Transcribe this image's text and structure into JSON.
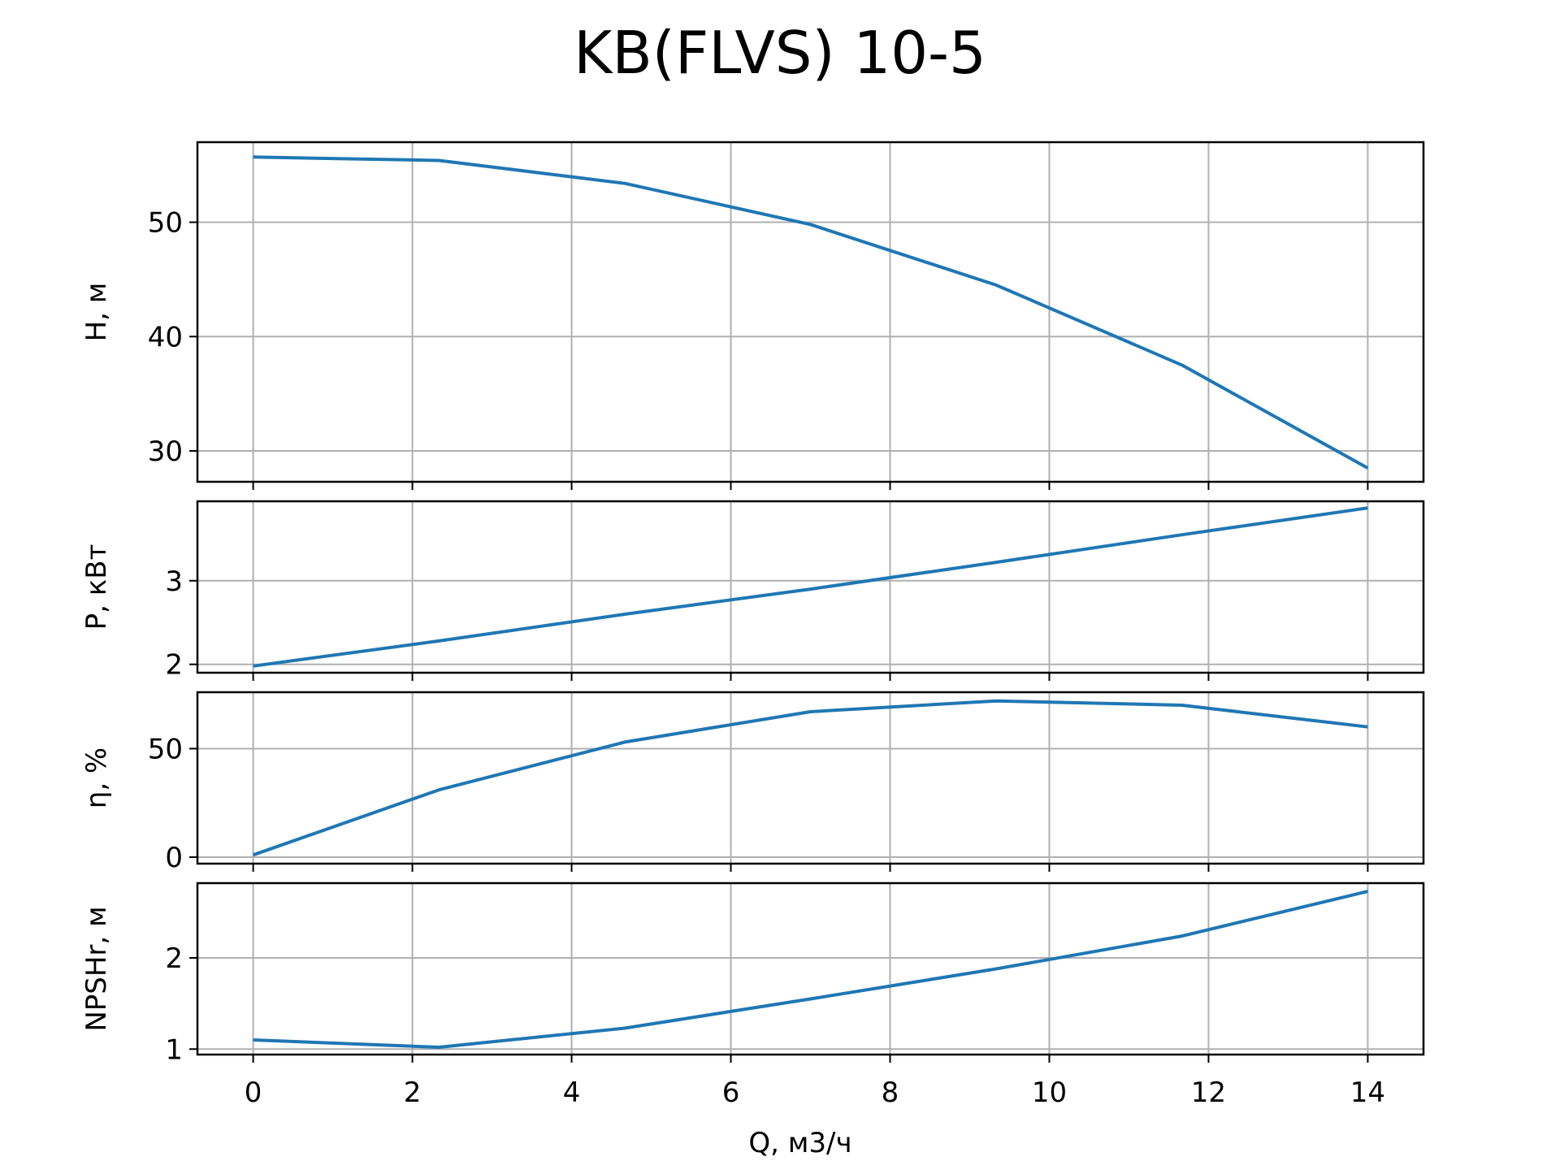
{
  "chart_data": {
    "type": "line",
    "title": "KB(FLVS) 10-5",
    "xlabel": "Q, м3/ч",
    "xlim": [
      -0.7,
      14.7
    ],
    "xticks": [
      0,
      2,
      4,
      6,
      8,
      10,
      12,
      14
    ],
    "x": [
      0,
      2.333,
      4.667,
      7.0,
      9.333,
      11.667,
      14.0
    ],
    "grid": true,
    "colors": {
      "line": "#1f77b4",
      "grid": "#b0b0b0",
      "frame": "#000000"
    },
    "panels": [
      {
        "ylabel": "H, м",
        "ylim": [
          27.3,
          57.0
        ],
        "yticks": [
          30,
          40,
          50
        ],
        "values": [
          55.7,
          55.4,
          53.4,
          49.8,
          44.5,
          37.5,
          28.5
        ]
      },
      {
        "ylabel": "P, кВт",
        "ylim": [
          1.9,
          3.95
        ],
        "yticks": [
          2,
          3
        ],
        "values": [
          1.98,
          2.28,
          2.6,
          2.9,
          3.22,
          3.55,
          3.87
        ]
      },
      {
        "ylabel": "η, %",
        "ylim": [
          -3,
          76
        ],
        "yticks": [
          0,
          50
        ],
        "values": [
          1,
          31,
          53,
          67,
          72,
          70,
          60
        ]
      },
      {
        "ylabel": "NPSHr, м",
        "ylim": [
          0.94,
          2.82
        ],
        "yticks": [
          1,
          2
        ],
        "values": [
          1.1,
          1.02,
          1.23,
          1.55,
          1.88,
          2.24,
          2.73
        ]
      }
    ]
  }
}
